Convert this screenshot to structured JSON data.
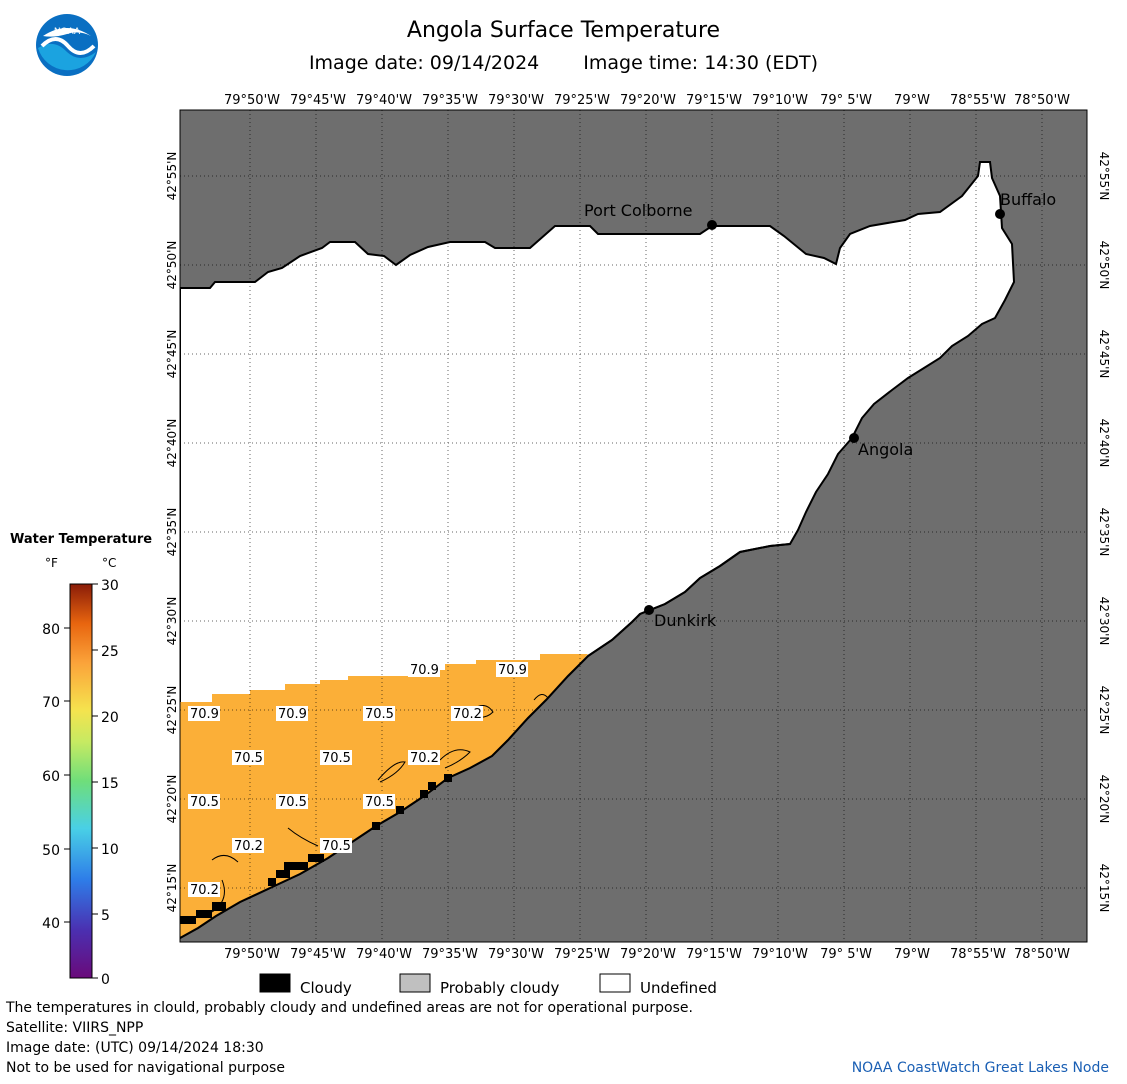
{
  "header": {
    "title": "Angola Surface Temperature",
    "image_date": "Image date: 09/14/2024",
    "image_time": "Image time: 14:30 (EDT)"
  },
  "logo": {
    "text": "NOAA",
    "icon": "noaa-logo-icon"
  },
  "map": {
    "lon_labels": [
      "79°50'W",
      "79°45'W",
      "79°40'W",
      "79°35'W",
      "79°30'W",
      "79°25'W",
      "79°20'W",
      "79°15'W",
      "79°10'W",
      "79° 5'W",
      "79°W",
      "78°55'W",
      "78°50'W"
    ],
    "lat_labels": [
      "42°55'N",
      "42°50'N",
      "42°45'N",
      "42°40'N",
      "42°35'N",
      "42°30'N",
      "42°25'N",
      "42°20'N",
      "42°15'N"
    ],
    "places": [
      {
        "name": "Port Colborne"
      },
      {
        "name": "Buffalo"
      },
      {
        "name": "Angola"
      },
      {
        "name": "Dunkirk"
      }
    ],
    "temperature_labels": [
      "70.9",
      "70.9",
      "70.9",
      "70.9",
      "70.5",
      "70.2",
      "70.5",
      "70.5",
      "70.2",
      "70.5",
      "70.5",
      "70.5",
      "70.2",
      "70.5",
      "70.2"
    ],
    "colors": {
      "land": "#6e6e6e",
      "water_temp": "#fbaf38",
      "cloudy": "#000000",
      "undefined": "#ffffff"
    }
  },
  "legend": {
    "title": "Water Temperature",
    "unit_f": "°F",
    "unit_c": "°C",
    "f_ticks": [
      "80",
      "70",
      "60",
      "50",
      "40"
    ],
    "c_ticks": [
      "30",
      "25",
      "20",
      "15",
      "10",
      "5",
      "0"
    ]
  },
  "key": [
    {
      "label": "Cloudy",
      "color": "#000000"
    },
    {
      "label": "Probably cloudy",
      "color": "#c0c0c0"
    },
    {
      "label": "Undefined",
      "color": "#ffffff"
    }
  ],
  "footer": {
    "disclaimer": "The temperatures in clould, probably cloudy and undefined areas are not for operational purpose.",
    "satellite": "Satellite: VIIRS_NPP",
    "utc_date": "Image date: (UTC) 09/14/2024  18:30",
    "nav_warning": "Not to be used for navigational purpose",
    "credit": "NOAA CoastWatch Great Lakes Node"
  }
}
